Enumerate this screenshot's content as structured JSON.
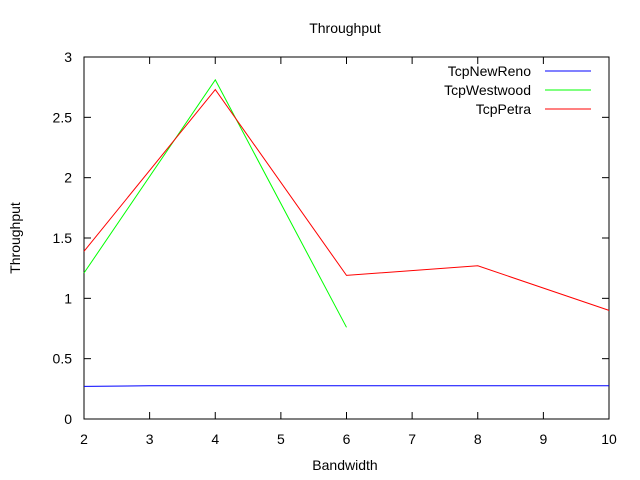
{
  "chart_data": {
    "type": "line",
    "title": "Throughput",
    "xlabel": "Bandwidth",
    "ylabel": "Throughput",
    "xlim": [
      2,
      10
    ],
    "ylim": [
      0,
      3
    ],
    "xticks": [
      2,
      3,
      4,
      5,
      6,
      7,
      8,
      9,
      10
    ],
    "yticks": [
      0,
      0.5,
      1,
      1.5,
      2,
      2.5,
      3
    ],
    "ytick_labels": [
      "0",
      "0.5",
      "1",
      "1.5",
      "2",
      "2.5",
      "3"
    ],
    "grid": false,
    "legend_position": "top-right",
    "series": [
      {
        "name": "TcpNewReno",
        "color": "#0000ff",
        "x": [
          2,
          3,
          4,
          6,
          8,
          10
        ],
        "y": [
          0.27,
          0.275,
          0.275,
          0.275,
          0.275,
          0.275
        ]
      },
      {
        "name": "TcpWestwood",
        "color": "#00ff00",
        "x": [
          2,
          4,
          6
        ],
        "y": [
          1.21,
          2.81,
          0.76
        ]
      },
      {
        "name": "TcpPetra",
        "color": "#ff0000",
        "x": [
          2,
          4,
          6,
          8,
          10
        ],
        "y": [
          1.39,
          2.73,
          1.19,
          1.27,
          0.9
        ]
      }
    ]
  }
}
